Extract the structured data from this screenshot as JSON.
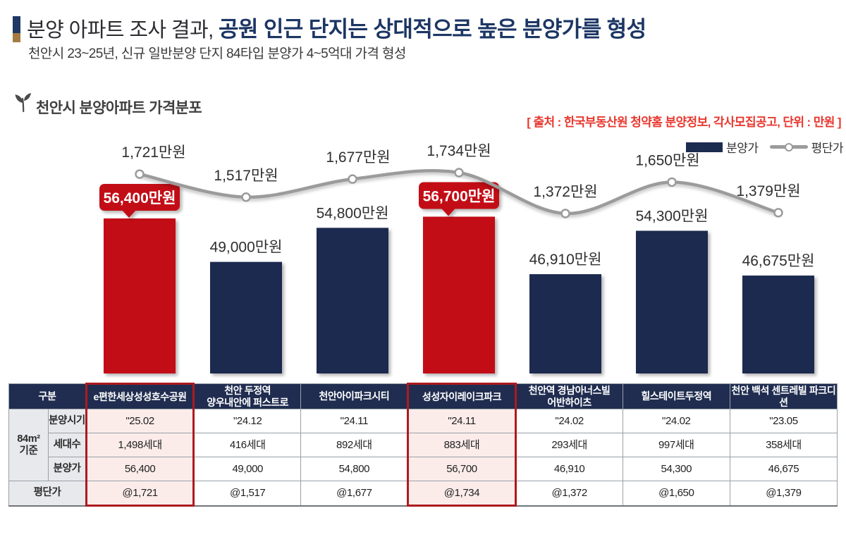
{
  "header": {
    "title_prefix": "분양 아파트 조사 결과, ",
    "title_emphasis": "공원 인근 단지는 상대적으로 높은 분양가를 형성",
    "subtitle": "천안시 23~25년, 신규 일반분양 단지 84타입 분양가 4~5억대 가격 형성"
  },
  "chart": {
    "section_title": "천안시 분양아파트 가격분포",
    "source_note": "[ 출처 : 한국부동산원 청약홈 분양정보, 각사모집공고, 단위 : 만원 ]"
  },
  "chart_data": {
    "type": "bar",
    "title": "천안시 분양아파트 가격분포",
    "unit": "만원",
    "grid": false,
    "legend_position": "top-right",
    "categories": [
      "e편한세상성성호수공원",
      "천안 두정역 양우내안에 퍼스트로",
      "천안아이파크시티",
      "성성자이레이크파크",
      "천안역 경남아너스빌 어반하이츠",
      "힐스테이트두정역",
      "천안 백석 센트레빌 파크디션"
    ],
    "series": [
      {
        "name": "분양가",
        "type": "bar",
        "values": [
          56400,
          49000,
          54800,
          56700,
          46910,
          54300,
          46675
        ],
        "labels": [
          "56,400만원",
          "49,000만원",
          "54,800만원",
          "56,700만원",
          "46,910만원",
          "54,300만원",
          "46,675만원"
        ],
        "highlighted": [
          true,
          false,
          false,
          true,
          false,
          false,
          false
        ]
      },
      {
        "name": "평단가",
        "type": "line",
        "values": [
          1721,
          1517,
          1677,
          1734,
          1372,
          1650,
          1379
        ],
        "labels": [
          "1,721만원",
          "1,517만원",
          "1,677만원",
          "1,734만원",
          "1,372만원",
          "1,650만원",
          "1,379만원"
        ]
      }
    ],
    "colors": {
      "bar": "#1C2B50",
      "bar_highlight": "#C30D14",
      "line": "#9B9B9B",
      "badge_text": "#FFFFFF",
      "value_label": "#2E2E2E"
    }
  },
  "table": {
    "corner_label": "구분",
    "group_label": "84m²\n기준",
    "columns": [
      {
        "label": "e편한세상성성호수공원",
        "highlight": true
      },
      {
        "label": "천안 두정역\n양우내안에 퍼스트로",
        "highlight": false
      },
      {
        "label": "천안아이파크시티",
        "highlight": false
      },
      {
        "label": "성성자이레이크파크",
        "highlight": true
      },
      {
        "label": "천안역 경남아너스빌\n어반하이츠",
        "highlight": false
      },
      {
        "label": "힐스테이트두정역",
        "highlight": false
      },
      {
        "label": "천안 백석 센트레빌 파크디션",
        "highlight": false
      }
    ],
    "rows": [
      {
        "label": "분양시기",
        "in_group": true,
        "values": [
          "\"25.02",
          "\"24.12",
          "\"24.11",
          "\"24.11",
          "\"24.02",
          "\"24.02",
          "\"23.05"
        ]
      },
      {
        "label": "세대수",
        "in_group": true,
        "values": [
          "1,498세대",
          "416세대",
          "892세대",
          "883세대",
          "293세대",
          "997세대",
          "358세대"
        ]
      },
      {
        "label": "분양가",
        "in_group": true,
        "values": [
          "56,400",
          "49,000",
          "54,800",
          "56,700",
          "46,910",
          "54,300",
          "46,675"
        ]
      },
      {
        "label": "평단가",
        "in_group": false,
        "values": [
          "@1,721",
          "@1,517",
          "@1,677",
          "@1,734",
          "@1,372",
          "@1,650",
          "@1,379"
        ]
      }
    ]
  }
}
